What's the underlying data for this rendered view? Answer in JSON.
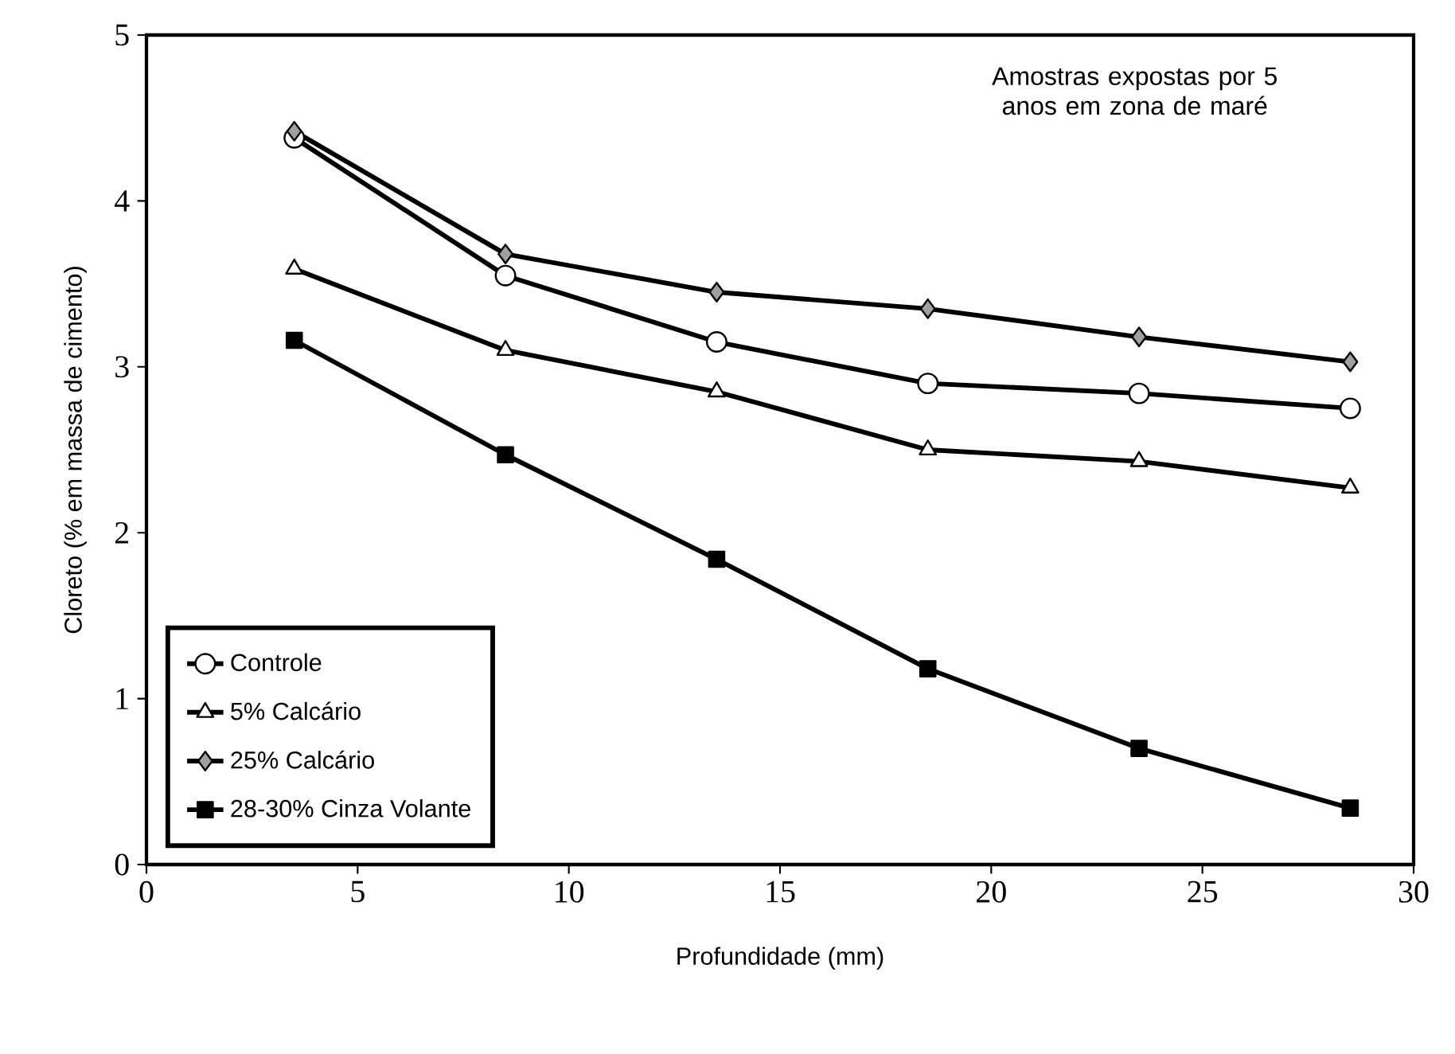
{
  "chart_data": {
    "type": "line",
    "xlabel": "Profundidade (mm)",
    "ylabel": "Cloreto (% em massa de cimento)",
    "annotations": [
      "Amostras expostas por 5 anos em zona de maré"
    ],
    "x": [
      3.5,
      8.5,
      13.5,
      18.5,
      23.5,
      28.5
    ],
    "series": [
      {
        "name": "Controle",
        "color": "#ffffff",
        "marker": "circle",
        "values": [
          4.38,
          3.55,
          3.15,
          2.9,
          2.84,
          2.75
        ]
      },
      {
        "name": "5% Calcário",
        "color": "#ffffff",
        "marker": "triangle",
        "values": [
          3.59,
          3.1,
          2.85,
          2.5,
          2.43,
          2.27
        ]
      },
      {
        "name": "25% Calcário",
        "color": "#a0a0a0",
        "marker": "diamond",
        "values": [
          4.42,
          3.68,
          3.45,
          3.35,
          3.18,
          3.03
        ]
      },
      {
        "name": "28-30% Cinza Volante",
        "color": "#000000",
        "marker": "square",
        "values": [
          3.16,
          2.47,
          1.84,
          1.18,
          0.7,
          0.34
        ]
      }
    ],
    "xlim": [
      0,
      30
    ],
    "xticks": [
      0,
      5,
      10,
      15,
      20,
      25,
      30
    ],
    "ylim": [
      0,
      5
    ],
    "yticks": [
      0,
      1,
      2,
      3,
      4,
      5
    ],
    "grid": false,
    "legend": "bottom left",
    "line_style": "solid"
  }
}
